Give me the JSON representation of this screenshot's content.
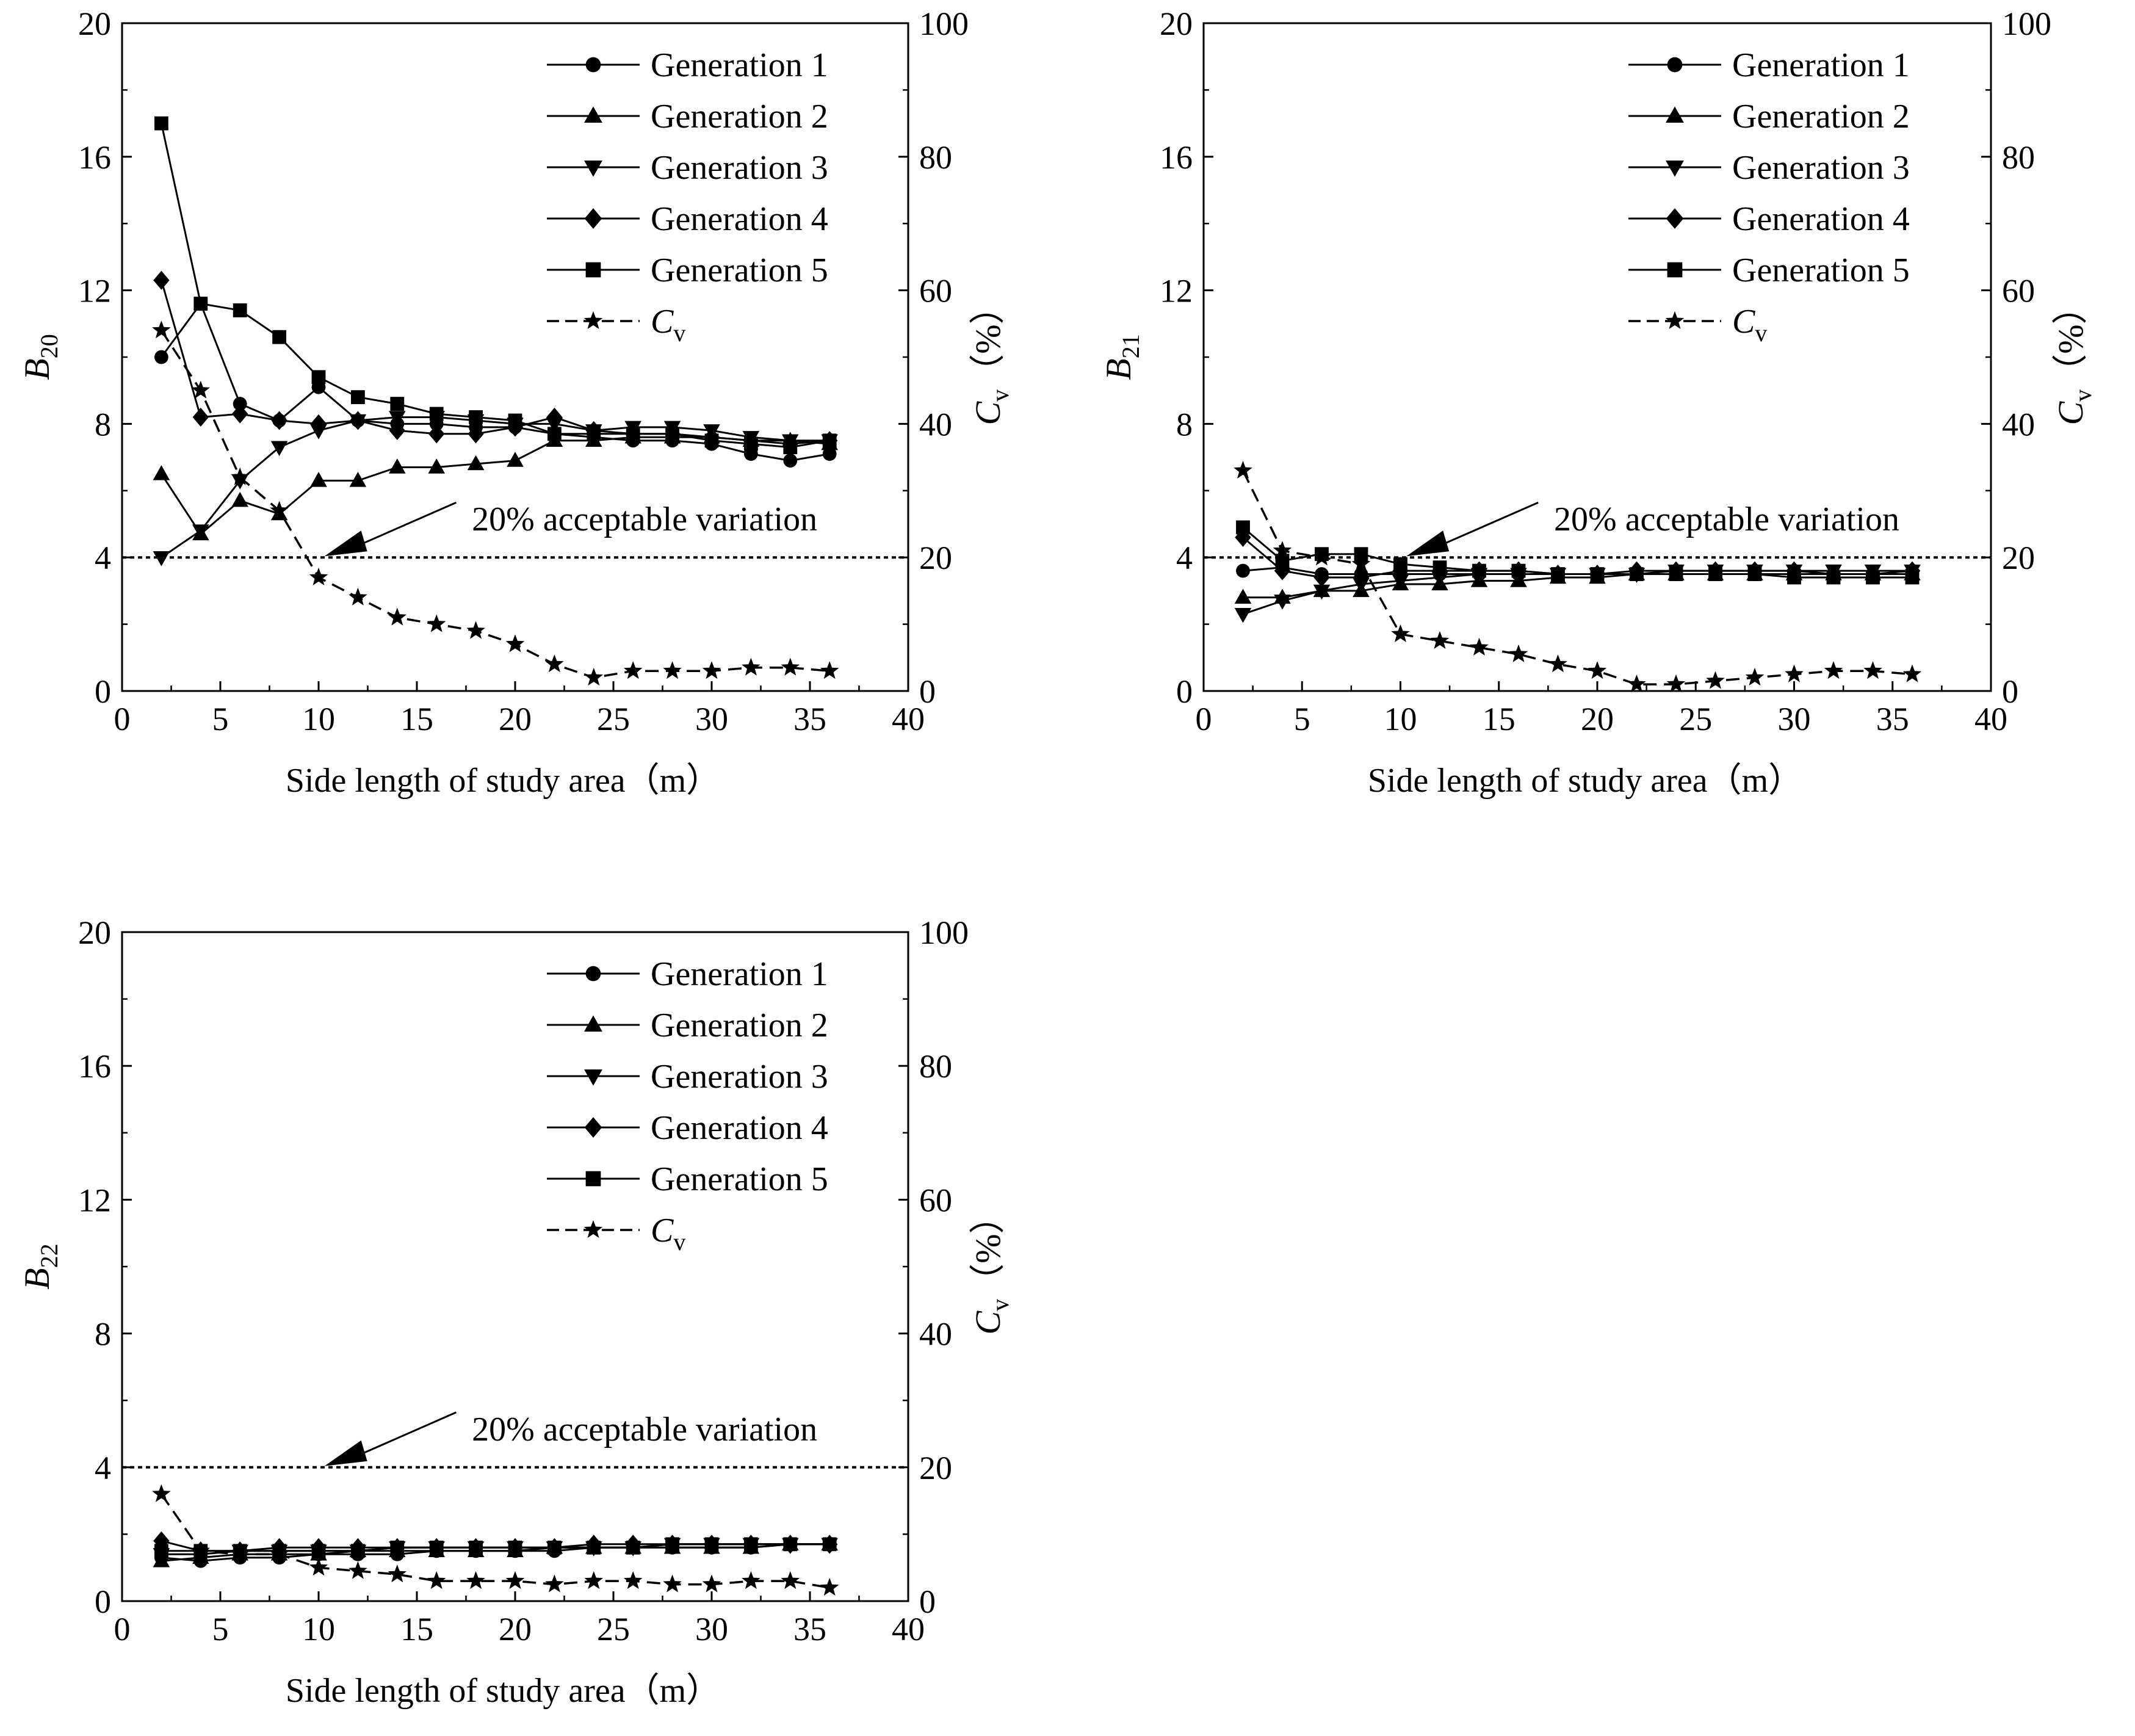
{
  "chart_data": [
    {
      "type": "line",
      "ylabel_main": "B",
      "ylabel_sub": "20",
      "y2label_main": "C",
      "y2label_sub": "v",
      "y2label_unit": "（%）",
      "xlabel": "Side length of study area（m）",
      "xlim": [
        0,
        40
      ],
      "ylim": [
        0,
        20
      ],
      "y2lim": [
        0,
        100
      ],
      "xticks": [
        0,
        5,
        10,
        15,
        20,
        25,
        30,
        35,
        40
      ],
      "yticks": [
        0,
        4,
        8,
        12,
        16,
        20
      ],
      "y2ticks": [
        0,
        20,
        40,
        60,
        80,
        100
      ],
      "threshold": {
        "value": 4,
        "label": "20%  acceptable variation"
      },
      "x": [
        2,
        4,
        6,
        8,
        10,
        12,
        14,
        16,
        18,
        20,
        22,
        24,
        26,
        28,
        30,
        32,
        34,
        36
      ],
      "series": [
        {
          "name": "Generation 1",
          "marker": "circle",
          "values": [
            10.0,
            11.6,
            8.6,
            8.1,
            9.1,
            8.1,
            8.0,
            8.0,
            7.9,
            7.9,
            7.7,
            7.6,
            7.5,
            7.5,
            7.4,
            7.1,
            6.9,
            7.1
          ]
        },
        {
          "name": "Generation 2",
          "marker": "triangle-up",
          "values": [
            6.5,
            4.7,
            5.7,
            5.3,
            6.3,
            6.3,
            6.7,
            6.7,
            6.8,
            6.9,
            7.5,
            7.5,
            7.6,
            7.6,
            7.6,
            7.5,
            7.5,
            7.4
          ]
        },
        {
          "name": "Generation 3",
          "marker": "triangle-down",
          "values": [
            4.0,
            4.8,
            6.3,
            7.3,
            7.8,
            8.1,
            8.2,
            8.2,
            8.1,
            8.0,
            8.0,
            7.8,
            7.9,
            7.9,
            7.8,
            7.6,
            7.5,
            7.5
          ]
        },
        {
          "name": "Generation 4",
          "marker": "diamond",
          "values": [
            12.3,
            8.2,
            8.3,
            8.1,
            8.0,
            8.1,
            7.8,
            7.7,
            7.7,
            7.9,
            8.2,
            7.8,
            7.7,
            7.7,
            7.6,
            7.5,
            7.4,
            7.5
          ]
        },
        {
          "name": "Generation 5",
          "marker": "square",
          "values": [
            17.0,
            11.6,
            11.4,
            10.6,
            9.4,
            8.8,
            8.6,
            8.3,
            8.2,
            8.1,
            7.7,
            7.7,
            7.7,
            7.7,
            7.5,
            7.4,
            7.3,
            7.5
          ]
        }
      ],
      "cv": {
        "name": "C",
        "sub": "v",
        "marker": "star",
        "values": [
          54,
          45,
          32,
          27,
          17,
          14,
          11,
          10,
          9,
          7,
          4,
          2,
          3,
          3,
          3,
          3.5,
          3.5,
          3
        ]
      }
    },
    {
      "type": "line",
      "ylabel_main": "B",
      "ylabel_sub": "21",
      "y2label_main": "C",
      "y2label_sub": "v",
      "y2label_unit": "（%）",
      "xlabel": "Side length of study area（m）",
      "xlim": [
        0,
        40
      ],
      "ylim": [
        0,
        20
      ],
      "y2lim": [
        0,
        100
      ],
      "xticks": [
        0,
        5,
        10,
        15,
        20,
        25,
        30,
        35,
        40
      ],
      "yticks": [
        0,
        4,
        8,
        12,
        16,
        20
      ],
      "y2ticks": [
        0,
        20,
        40,
        60,
        80,
        100
      ],
      "threshold": {
        "value": 4,
        "label": "20%  acceptable variation"
      },
      "x": [
        2,
        4,
        6,
        8,
        10,
        12,
        14,
        16,
        18,
        20,
        22,
        24,
        26,
        28,
        30,
        32,
        34,
        36
      ],
      "series": [
        {
          "name": "Generation 1",
          "marker": "circle",
          "values": [
            3.6,
            3.7,
            3.5,
            3.5,
            3.5,
            3.5,
            3.5,
            3.5,
            3.5,
            3.5,
            3.5,
            3.5,
            3.5,
            3.5,
            3.5,
            3.5,
            3.5,
            3.5
          ]
        },
        {
          "name": "Generation 2",
          "marker": "triangle-up",
          "values": [
            2.8,
            2.8,
            3.0,
            3.0,
            3.2,
            3.2,
            3.3,
            3.3,
            3.4,
            3.4,
            3.5,
            3.5,
            3.5,
            3.5,
            3.5,
            3.5,
            3.5,
            3.5
          ]
        },
        {
          "name": "Generation 3",
          "marker": "triangle-down",
          "values": [
            2.3,
            2.7,
            3.0,
            3.2,
            3.3,
            3.4,
            3.5,
            3.5,
            3.5,
            3.5,
            3.5,
            3.6,
            3.6,
            3.6,
            3.6,
            3.6,
            3.6,
            3.6
          ]
        },
        {
          "name": "Generation 4",
          "marker": "diamond",
          "values": [
            4.6,
            3.6,
            3.4,
            3.4,
            3.6,
            3.6,
            3.6,
            3.6,
            3.5,
            3.5,
            3.6,
            3.6,
            3.6,
            3.6,
            3.6,
            3.5,
            3.5,
            3.6
          ]
        },
        {
          "name": "Generation 5",
          "marker": "square",
          "values": [
            4.9,
            3.9,
            4.1,
            4.1,
            3.8,
            3.7,
            3.6,
            3.6,
            3.5,
            3.5,
            3.5,
            3.5,
            3.5,
            3.5,
            3.4,
            3.4,
            3.4,
            3.4
          ]
        }
      ],
      "cv": {
        "name": "C",
        "sub": "v",
        "marker": "star",
        "values": [
          33,
          21,
          20,
          19,
          8.5,
          7.5,
          6.5,
          5.5,
          4,
          3,
          1,
          1,
          1.5,
          2,
          2.5,
          3,
          3,
          2.5
        ]
      }
    },
    {
      "type": "line",
      "ylabel_main": "B",
      "ylabel_sub": "22",
      "y2label_main": "C",
      "y2label_sub": "v",
      "y2label_unit": "（%）",
      "xlabel": "Side length of study area（m）",
      "xlim": [
        0,
        40
      ],
      "ylim": [
        0,
        20
      ],
      "y2lim": [
        0,
        100
      ],
      "xticks": [
        0,
        5,
        10,
        15,
        20,
        25,
        30,
        35,
        40
      ],
      "yticks": [
        0,
        4,
        8,
        12,
        16,
        20
      ],
      "y2ticks": [
        0,
        20,
        40,
        60,
        80,
        100
      ],
      "threshold": {
        "value": 4,
        "label": "20%  acceptable variation"
      },
      "x": [
        2,
        4,
        6,
        8,
        10,
        12,
        14,
        16,
        18,
        20,
        22,
        24,
        26,
        28,
        30,
        32,
        34,
        36
      ],
      "series": [
        {
          "name": "Generation 1",
          "marker": "circle",
          "values": [
            1.3,
            1.2,
            1.3,
            1.3,
            1.4,
            1.4,
            1.4,
            1.5,
            1.5,
            1.5,
            1.5,
            1.6,
            1.6,
            1.6,
            1.6,
            1.6,
            1.7,
            1.7
          ]
        },
        {
          "name": "Generation 2",
          "marker": "triangle-up",
          "values": [
            1.2,
            1.3,
            1.4,
            1.4,
            1.4,
            1.5,
            1.5,
            1.5,
            1.5,
            1.5,
            1.6,
            1.6,
            1.6,
            1.6,
            1.6,
            1.6,
            1.7,
            1.7
          ]
        },
        {
          "name": "Generation 3",
          "marker": "triangle-down",
          "values": [
            1.4,
            1.4,
            1.5,
            1.5,
            1.5,
            1.5,
            1.6,
            1.6,
            1.6,
            1.6,
            1.6,
            1.6,
            1.6,
            1.7,
            1.7,
            1.7,
            1.7,
            1.7
          ]
        },
        {
          "name": "Generation 4",
          "marker": "diamond",
          "values": [
            1.8,
            1.5,
            1.5,
            1.6,
            1.6,
            1.6,
            1.6,
            1.6,
            1.6,
            1.6,
            1.6,
            1.7,
            1.7,
            1.7,
            1.7,
            1.7,
            1.7,
            1.7
          ]
        },
        {
          "name": "Generation 5",
          "marker": "square",
          "values": [
            1.5,
            1.5,
            1.5,
            1.5,
            1.5,
            1.5,
            1.6,
            1.6,
            1.6,
            1.6,
            1.6,
            1.6,
            1.6,
            1.7,
            1.7,
            1.7,
            1.7,
            1.7
          ]
        }
      ],
      "cv": {
        "name": "C",
        "sub": "v",
        "marker": "star",
        "values": [
          16,
          7.5,
          7,
          7,
          5,
          4.5,
          4,
          3,
          3,
          3,
          2.5,
          3,
          3,
          2.5,
          2.5,
          3,
          3,
          2
        ]
      }
    }
  ]
}
